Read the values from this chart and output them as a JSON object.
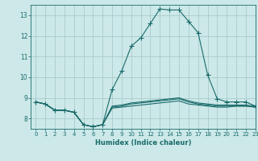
{
  "title": "",
  "xlabel": "Humidex (Indice chaleur)",
  "ylabel": "",
  "bg_color": "#cce8e8",
  "grid_color": "#aacccc",
  "line_color": "#1a6b6b",
  "xlim": [
    -0.5,
    23
  ],
  "ylim": [
    7.5,
    13.5
  ],
  "yticks": [
    8,
    9,
    10,
    11,
    12,
    13
  ],
  "xticks": [
    0,
    1,
    2,
    3,
    4,
    5,
    6,
    7,
    8,
    9,
    10,
    11,
    12,
    13,
    14,
    15,
    16,
    17,
    18,
    19,
    20,
    21,
    22,
    23
  ],
  "series": [
    {
      "x": [
        0,
        1,
        2,
        3,
        4,
        5,
        6,
        7,
        8,
        9,
        10,
        11,
        12,
        13,
        14,
        15,
        16,
        17,
        18,
        19,
        20,
        21,
        22,
        23
      ],
      "y": [
        8.8,
        8.7,
        8.4,
        8.4,
        8.3,
        7.7,
        7.6,
        7.7,
        9.4,
        10.3,
        11.5,
        11.9,
        12.6,
        13.3,
        13.25,
        13.25,
        12.7,
        12.15,
        10.1,
        8.95,
        8.8,
        8.8,
        8.8,
        8.6
      ],
      "marker": true
    },
    {
      "x": [
        0,
        1,
        2,
        3,
        4,
        5,
        6,
        7,
        8,
        9,
        10,
        11,
        12,
        13,
        14,
        15,
        16,
        17,
        18,
        19,
        20,
        21,
        22,
        23
      ],
      "y": [
        8.8,
        8.7,
        8.4,
        8.4,
        8.3,
        7.7,
        7.6,
        7.7,
        8.5,
        8.55,
        8.6,
        8.65,
        8.7,
        8.75,
        8.8,
        8.85,
        8.7,
        8.65,
        8.6,
        8.55,
        8.55,
        8.6,
        8.6,
        8.55
      ],
      "marker": false
    },
    {
      "x": [
        0,
        1,
        2,
        3,
        4,
        5,
        6,
        7,
        8,
        9,
        10,
        11,
        12,
        13,
        14,
        15,
        16,
        17,
        18,
        19,
        20,
        21,
        22,
        23
      ],
      "y": [
        8.8,
        8.7,
        8.4,
        8.4,
        8.3,
        7.7,
        7.6,
        7.7,
        8.55,
        8.6,
        8.7,
        8.75,
        8.8,
        8.85,
        8.9,
        8.95,
        8.8,
        8.7,
        8.65,
        8.6,
        8.6,
        8.6,
        8.6,
        8.55
      ],
      "marker": false
    },
    {
      "x": [
        0,
        1,
        2,
        3,
        4,
        5,
        6,
        7,
        8,
        9,
        10,
        11,
        12,
        13,
        14,
        15,
        16,
        17,
        18,
        19,
        20,
        21,
        22,
        23
      ],
      "y": [
        8.8,
        8.7,
        8.4,
        8.4,
        8.3,
        7.7,
        7.6,
        7.7,
        8.6,
        8.65,
        8.75,
        8.8,
        8.85,
        8.9,
        8.95,
        9.0,
        8.85,
        8.75,
        8.7,
        8.65,
        8.65,
        8.65,
        8.65,
        8.6
      ],
      "marker": false
    }
  ]
}
